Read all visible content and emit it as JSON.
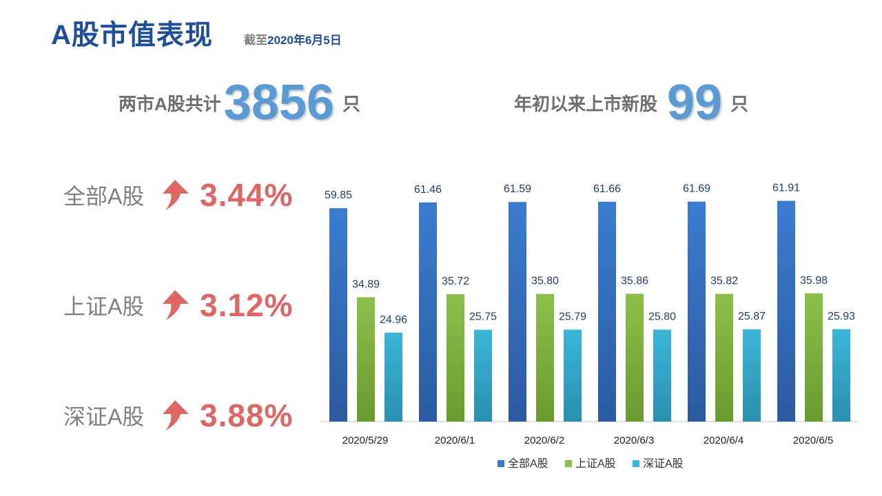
{
  "header": {
    "title": "A股市值表现",
    "asof_prefix": "截至",
    "asof_date": "2020年6月5日"
  },
  "stats": [
    {
      "label": "两市A股共计",
      "value": "3856",
      "unit": "只"
    },
    {
      "label": "年初以来上市新股",
      "value": "99",
      "unit": "只"
    }
  ],
  "changes": [
    {
      "label": "全部A股",
      "pct": "3.44%",
      "icon": "up-arrow-icon"
    },
    {
      "label": "上证A股",
      "pct": "3.12%",
      "icon": "up-arrow-icon"
    },
    {
      "label": "深证A股",
      "pct": "3.88%",
      "icon": "up-arrow-icon"
    }
  ],
  "colors": {
    "accent": "#5b9bd5",
    "title": "#1f4e9a",
    "up": "#e06666",
    "series": [
      "#3a7dd0",
      "#8cc04b",
      "#3ab6d8"
    ]
  },
  "chart_data": {
    "type": "bar",
    "title": "",
    "xlabel": "",
    "ylabel": "",
    "categories": [
      "2020/5/29",
      "2020/6/1",
      "2020/6/2",
      "2020/6/3",
      "2020/6/4",
      "2020/6/5"
    ],
    "series": [
      {
        "name": "全部A股",
        "values": [
          59.85,
          61.46,
          61.59,
          61.66,
          61.69,
          61.91
        ]
      },
      {
        "name": "上证A股",
        "values": [
          34.89,
          35.72,
          35.8,
          35.86,
          35.82,
          35.98
        ]
      },
      {
        "name": "深证A股",
        "values": [
          24.96,
          25.75,
          25.79,
          25.8,
          25.87,
          25.93
        ]
      }
    ],
    "ylim": [
      0,
      68
    ],
    "grid": false,
    "legend": "bottom-center",
    "value_labels": [
      [
        "59.85",
        "61.46",
        "61.59",
        "61.66",
        "61.69",
        "61.91"
      ],
      [
        "34.89",
        "35.72",
        "35.80",
        "35.86",
        "35.82",
        "35.98"
      ],
      [
        "24.96",
        "25.75",
        "25.79",
        "25.80",
        "25.87",
        "25.93"
      ]
    ]
  }
}
